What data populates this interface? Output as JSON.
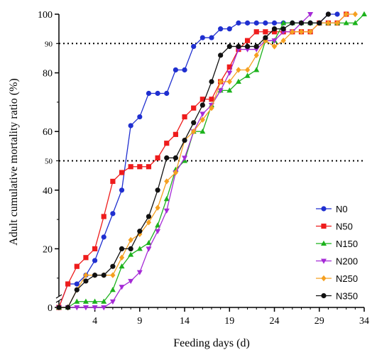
{
  "chart_data": {
    "type": "line",
    "xlabel": "Feeding days (d)",
    "ylabel": "Adult cumulative mortality ratio (%)",
    "xlim": [
      0,
      34
    ],
    "ylim": [
      0,
      100
    ],
    "y_axis_break": true,
    "x_ticks": [
      4,
      9,
      14,
      19,
      24,
      29,
      34
    ],
    "y_ticks": [
      0,
      20,
      40,
      60,
      80,
      100
    ],
    "reference_lines": [
      {
        "y": 90,
        "label": "90",
        "style": "dotted"
      },
      {
        "y": 50,
        "label": "50",
        "style": "dotted"
      }
    ],
    "grid": false,
    "legend_position": "bottom-right",
    "series": [
      {
        "name": "N0",
        "color": "#1f2fd0",
        "marker": "circle",
        "x": [
          0,
          1,
          2,
          3,
          4,
          5,
          6,
          7,
          8,
          9,
          10,
          11,
          12,
          13,
          14,
          15,
          16,
          17,
          18,
          19,
          20,
          21,
          22,
          23,
          24,
          25,
          26,
          27,
          28,
          29,
          30,
          31
        ],
        "y": [
          0,
          8,
          8,
          11,
          16,
          24,
          32,
          40,
          62,
          65,
          73,
          73,
          73,
          81,
          81,
          89,
          92,
          92,
          95,
          95,
          97,
          97,
          97,
          97,
          97,
          97,
          97,
          97,
          97,
          97,
          100,
          100
        ]
      },
      {
        "name": "N50",
        "color": "#ee1c1c",
        "marker": "square",
        "x": [
          0,
          1,
          2,
          3,
          4,
          5,
          6,
          7,
          8,
          9,
          10,
          11,
          12,
          13,
          14,
          15,
          16,
          17,
          18,
          19,
          20,
          21,
          22,
          23,
          24,
          25,
          26,
          27,
          28,
          29,
          30,
          31,
          32
        ],
        "y": [
          0,
          8,
          14,
          17,
          20,
          31,
          43,
          46,
          48,
          48,
          48,
          51,
          56,
          59,
          65,
          68,
          71,
          71,
          77,
          82,
          88,
          91,
          94,
          94,
          94,
          94,
          94,
          94,
          94,
          97,
          97,
          97,
          100
        ]
      },
      {
        "name": "N150",
        "color": "#1cb21c",
        "marker": "triangle",
        "x": [
          0,
          1,
          2,
          3,
          4,
          5,
          6,
          7,
          8,
          9,
          10,
          11,
          12,
          13,
          14,
          15,
          16,
          17,
          18,
          19,
          20,
          21,
          22,
          23,
          24,
          25,
          26,
          27,
          28,
          29,
          30,
          31,
          32,
          33,
          34
        ],
        "y": [
          0,
          0,
          2,
          2,
          2,
          2,
          6,
          14,
          18,
          20,
          22,
          28,
          37,
          47,
          50,
          60,
          60,
          69,
          74,
          74,
          77,
          79,
          81,
          91,
          91,
          97,
          97,
          97,
          97,
          97,
          97,
          97,
          97,
          97,
          100
        ]
      },
      {
        "name": "N200",
        "color": "#a52ad6",
        "marker": "triangle-down",
        "x": [
          0,
          1,
          2,
          3,
          4,
          5,
          6,
          7,
          8,
          9,
          10,
          11,
          12,
          13,
          14,
          15,
          16,
          17,
          18,
          19,
          20,
          21,
          22,
          23,
          24,
          25,
          26,
          27,
          28
        ],
        "y": [
          0,
          0,
          0,
          0,
          0,
          0,
          2,
          7,
          9,
          12,
          20,
          26,
          33,
          46,
          51,
          60,
          66,
          69,
          74,
          80,
          88,
          88,
          88,
          91,
          91,
          94,
          94,
          97,
          100
        ]
      },
      {
        "name": "N250",
        "color": "#f5a020",
        "marker": "diamond",
        "x": [
          0,
          1,
          2,
          3,
          4,
          5,
          6,
          7,
          8,
          9,
          10,
          11,
          12,
          13,
          14,
          15,
          16,
          17,
          18,
          19,
          20,
          21,
          22,
          23,
          24,
          25,
          26,
          27,
          28,
          29,
          30,
          31,
          32,
          33
        ],
        "y": [
          0,
          0,
          6,
          11,
          11,
          11,
          11,
          17,
          23,
          25,
          29,
          34,
          43,
          46,
          57,
          60,
          64,
          68,
          77,
          77,
          81,
          81,
          86,
          91,
          89,
          91,
          94,
          94,
          94,
          97,
          97,
          97,
          100,
          100
        ]
      },
      {
        "name": "N350",
        "color": "#111111",
        "marker": "circle",
        "x": [
          0,
          1,
          2,
          3,
          4,
          5,
          6,
          7,
          8,
          9,
          10,
          11,
          12,
          13,
          14,
          15,
          16,
          17,
          18,
          19,
          20,
          21,
          22,
          23,
          24,
          25,
          26,
          27,
          28,
          29,
          30
        ],
        "y": [
          0,
          0,
          6,
          9,
          11,
          11,
          14,
          20,
          20,
          26,
          31,
          40,
          51,
          51,
          57,
          63,
          69,
          77,
          86,
          89,
          89,
          89,
          89,
          92,
          95,
          95,
          97,
          97,
          97,
          97,
          100
        ]
      }
    ]
  }
}
